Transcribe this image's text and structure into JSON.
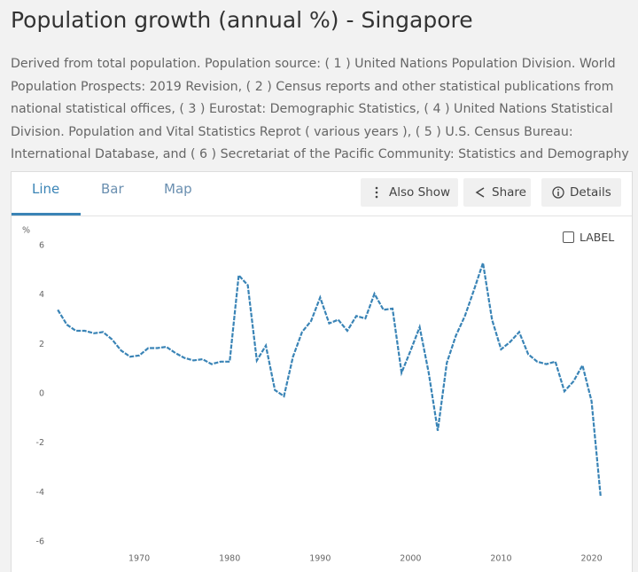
{
  "header": {
    "title": "Population growth (annual %) - Singapore",
    "description": "Derived from total population. Population source: ( 1 ) United Nations Population Division. World Population Prospects: 2019 Revision, ( 2 ) Census reports and other statistical publications from national statistical offices, ( 3 ) Eurostat: Demographic Statistics, ( 4 ) United Nations Statistical Division. Population and Vital Statistics Reprot ( various years ), ( 5 ) U.S. Census Bureau: International Database, and ( 6 ) Secretariat of the Pacific Community: Statistics and Demography Programme."
  },
  "tabs": [
    "Line",
    "Bar",
    "Map"
  ],
  "buttons": [
    "Also Show",
    "Share",
    "Details"
  ],
  "label_toggle": "LABEL",
  "chart_data": {
    "type": "line",
    "ylabel": "%",
    "color": "#3a84b6",
    "x": [
      1961,
      1962,
      1963,
      1964,
      1965,
      1966,
      1967,
      1968,
      1969,
      1970,
      1971,
      1972,
      1973,
      1974,
      1975,
      1976,
      1977,
      1978,
      1979,
      1980,
      1981,
      1982,
      1983,
      1984,
      1985,
      1986,
      1987,
      1988,
      1989,
      1990,
      1991,
      1992,
      1993,
      1994,
      1995,
      1996,
      1997,
      1998,
      1999,
      2000,
      2001,
      2002,
      2003,
      2004,
      2005,
      2006,
      2007,
      2008,
      2009,
      2010,
      2011,
      2012,
      2013,
      2014,
      2015,
      2016,
      2017,
      2018,
      2019,
      2020,
      2021
    ],
    "values": [
      3.4,
      2.8,
      2.55,
      2.55,
      2.45,
      2.5,
      2.2,
      1.75,
      1.5,
      1.55,
      1.85,
      1.85,
      1.9,
      1.65,
      1.45,
      1.35,
      1.4,
      1.2,
      1.3,
      1.3,
      4.8,
      4.4,
      1.35,
      1.95,
      0.15,
      -0.1,
      1.5,
      2.5,
      2.95,
      3.9,
      2.85,
      3.0,
      2.55,
      3.15,
      3.05,
      4.05,
      3.4,
      3.45,
      0.85,
      1.75,
      2.7,
      0.85,
      -1.5,
      1.25,
      2.35,
      3.15,
      4.2,
      5.3,
      3.0,
      1.8,
      2.1,
      2.5,
      1.6,
      1.3,
      1.2,
      1.3,
      0.1,
      0.5,
      1.15,
      -0.3,
      -4.15
    ],
    "xlim": [
      1960,
      2022
    ],
    "xticks": [
      1970,
      1980,
      1990,
      2000,
      2010,
      2020
    ],
    "ylim": [
      -6,
      6
    ],
    "yticks": [
      -6,
      -4,
      -2,
      0,
      2,
      4,
      6
    ],
    "grid": false
  }
}
